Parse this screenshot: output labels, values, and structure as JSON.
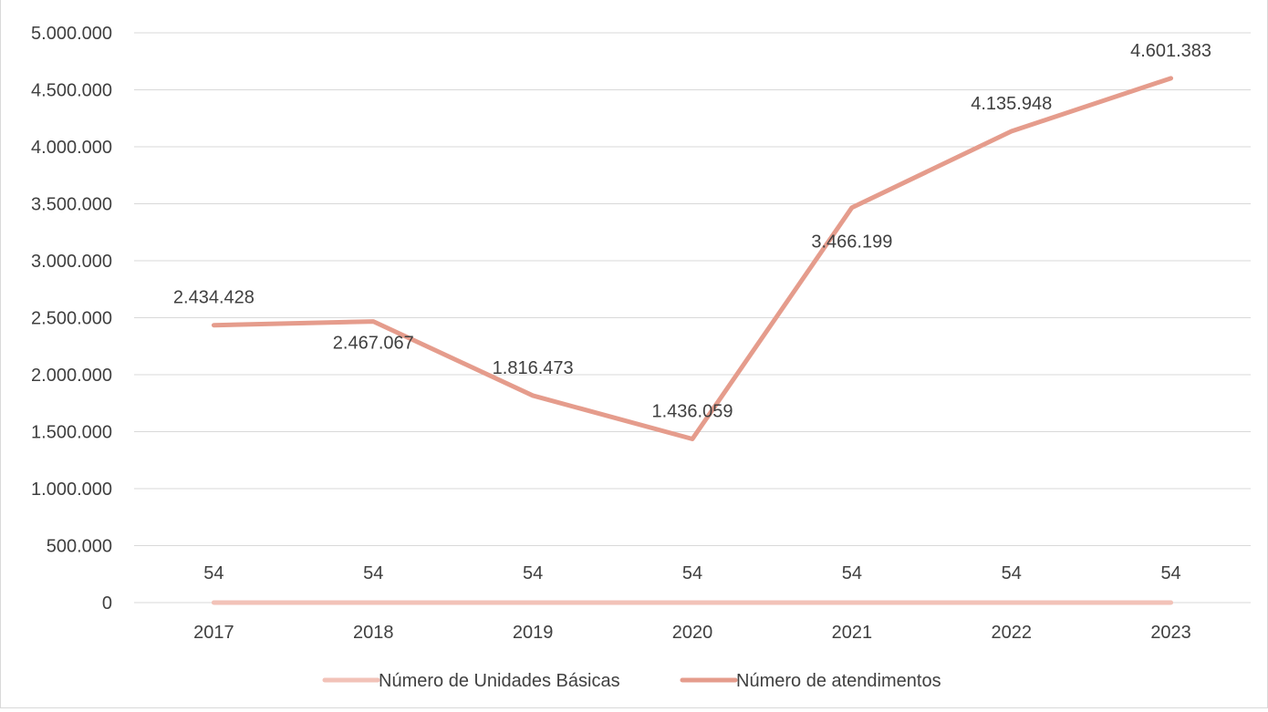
{
  "chart_data": {
    "type": "line",
    "title": "",
    "xlabel": "",
    "ylabel": "",
    "categories": [
      "2017",
      "2018",
      "2019",
      "2020",
      "2021",
      "2022",
      "2023"
    ],
    "ylim": [
      0,
      5000000
    ],
    "y_ticks": [
      0,
      500000,
      1000000,
      1500000,
      2000000,
      2500000,
      3000000,
      3500000,
      4000000,
      4500000,
      5000000
    ],
    "y_tick_labels": [
      "0",
      "500.000",
      "1.000.000",
      "1.500.000",
      "2.000.000",
      "2.500.000",
      "3.000.000",
      "3.500.000",
      "4.000.000",
      "4.500.000",
      "5.000.000"
    ],
    "grid": "horizontal",
    "legend_position": "bottom",
    "series": [
      {
        "name": "Número de Unidades Básicas",
        "color": "#f2c2b8",
        "values": [
          54,
          54,
          54,
          54,
          54,
          54,
          54
        ],
        "labels": [
          "54",
          "54",
          "54",
          "54",
          "54",
          "54",
          "54"
        ]
      },
      {
        "name": "Número de atendimentos",
        "color": "#e59c8c",
        "values": [
          2434428,
          2467067,
          1816473,
          1436059,
          3466199,
          4135948,
          4601383
        ],
        "labels": [
          "2.434.428",
          "2.467.067",
          "1.816.473",
          "1.436.059",
          "3.466.199",
          "4.135.948",
          "4.601.383"
        ]
      }
    ]
  }
}
